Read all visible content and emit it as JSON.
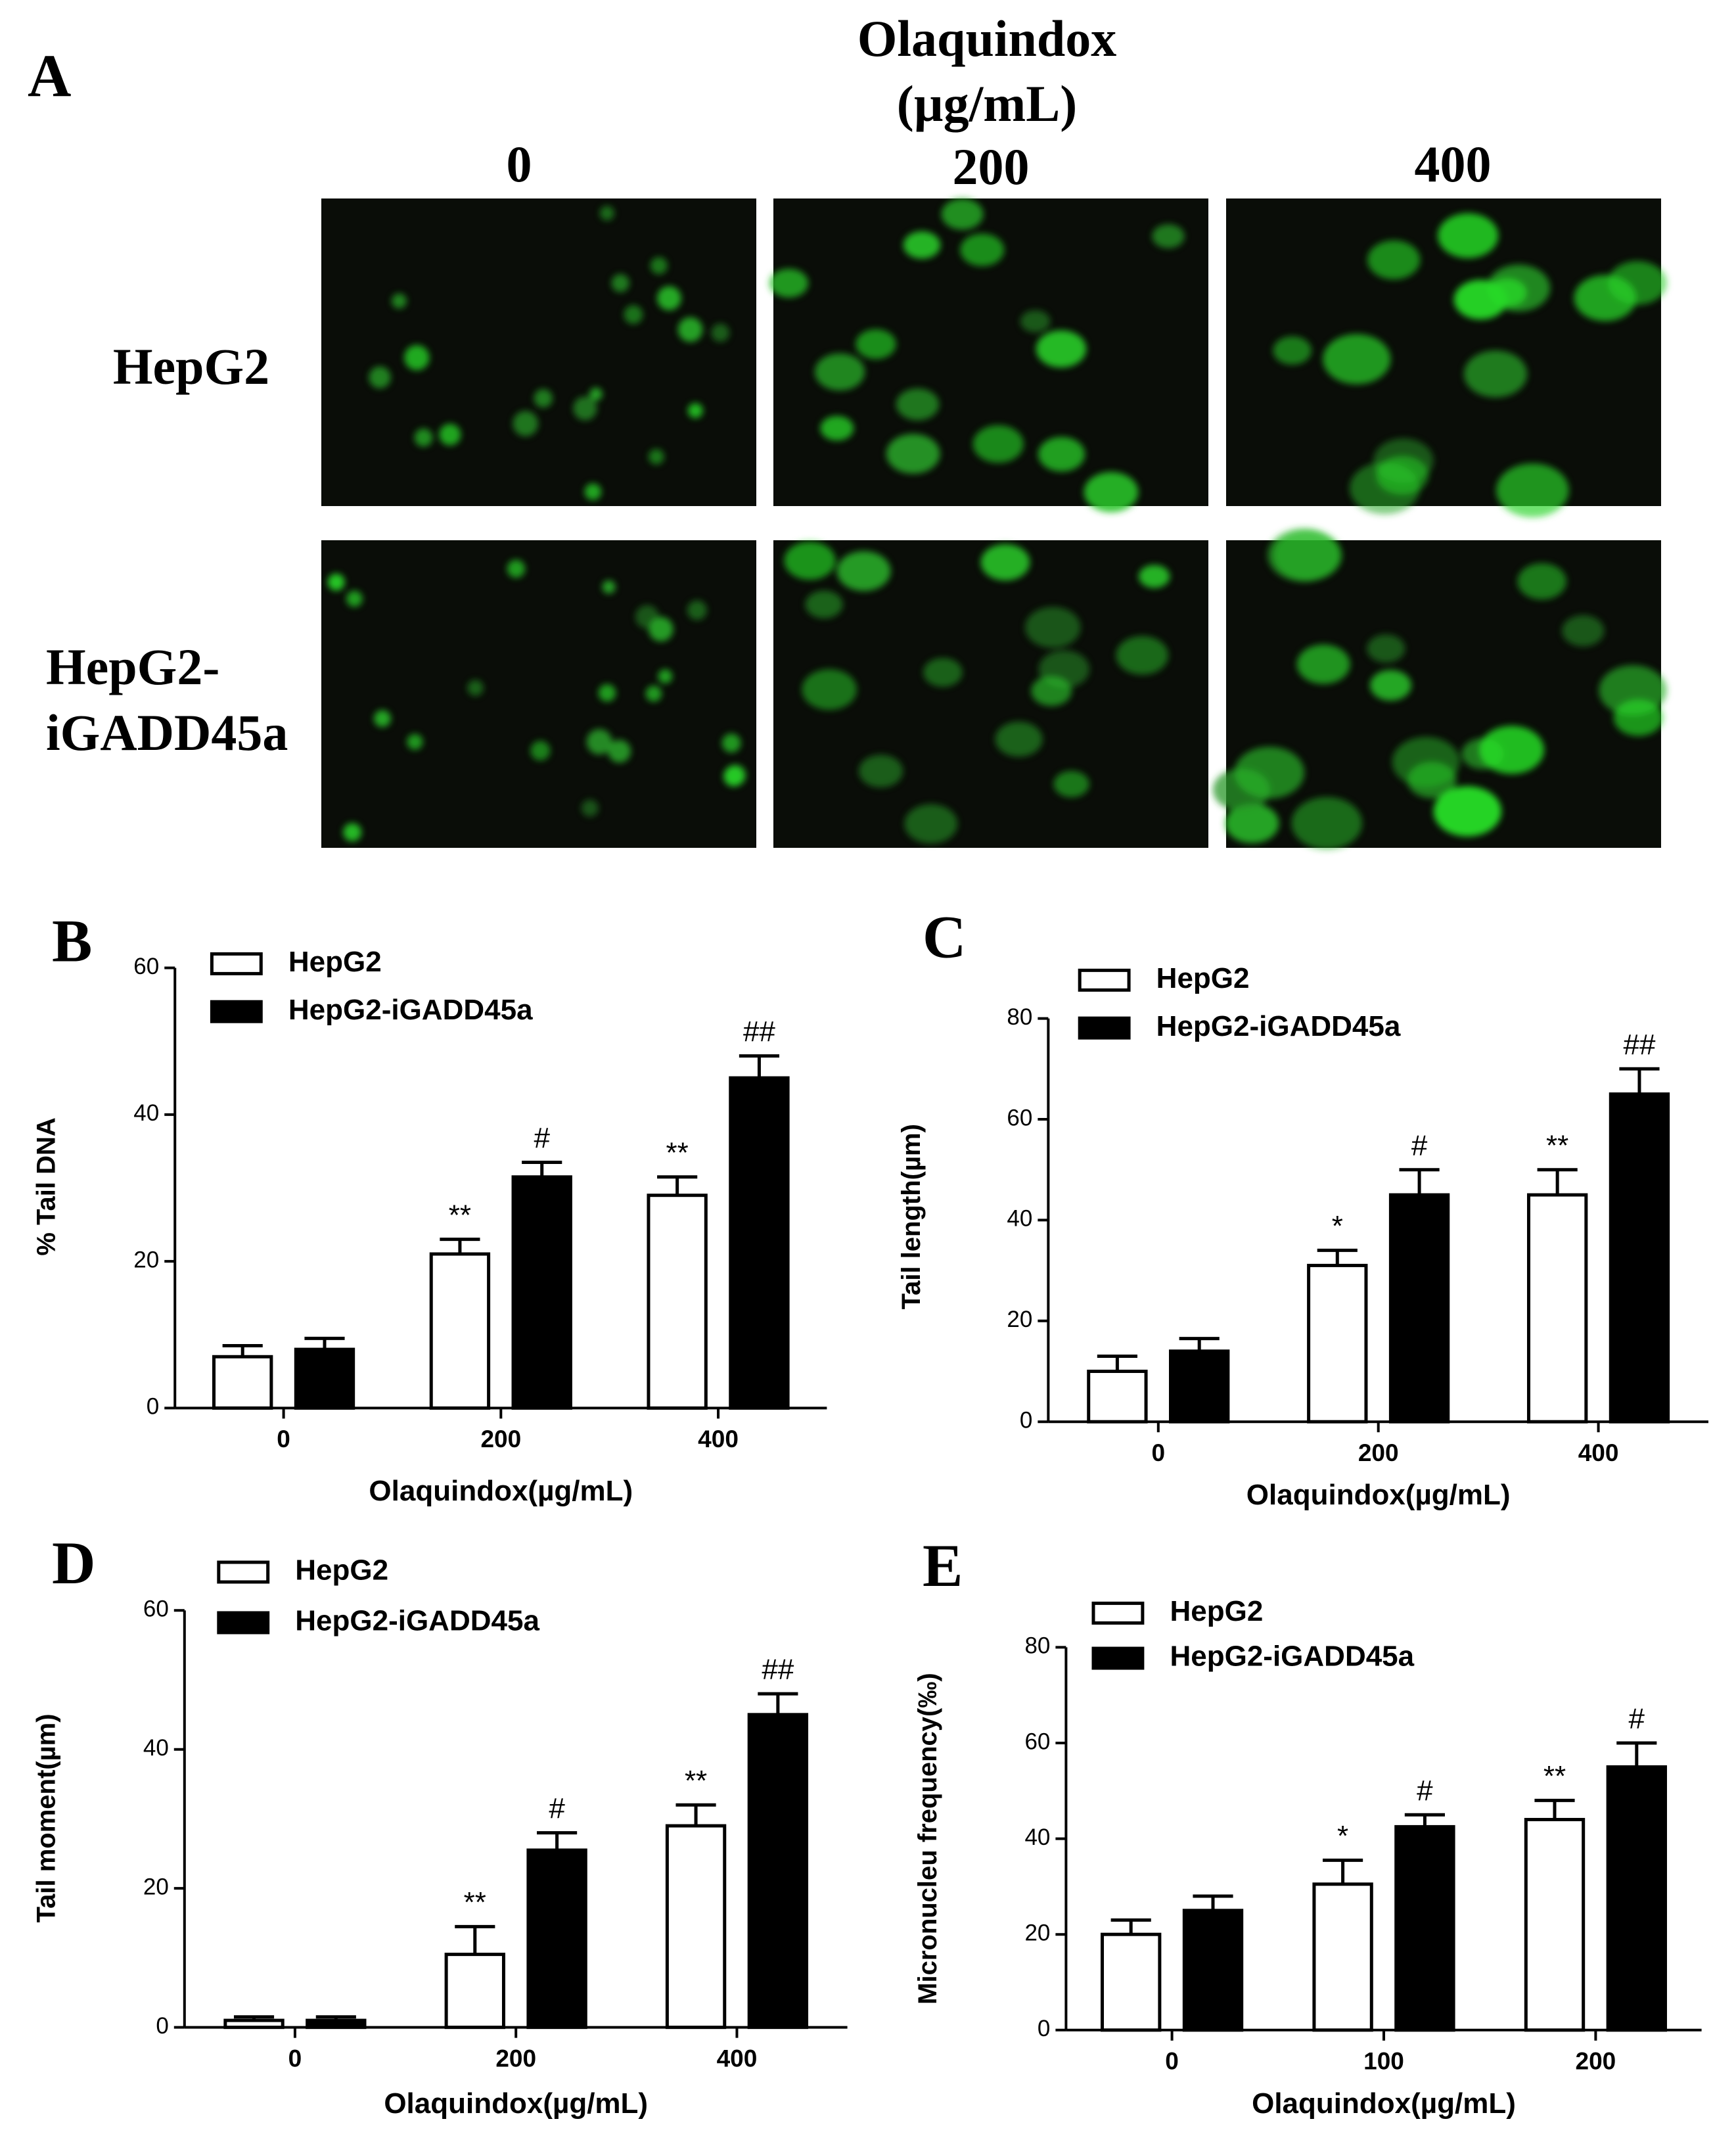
{
  "panel_a": {
    "label": "A",
    "title": "Olaquindox",
    "unit": "(µg/mL)",
    "columns": [
      "0",
      "200",
      "400"
    ],
    "rows": [
      [
        "HepG2"
      ],
      [
        "HepG2-",
        "iGADD45a"
      ]
    ]
  },
  "chart_data": [
    {
      "type": "bar",
      "panel": "B",
      "y_label": "% Tail DNA",
      "x_label": "Olaquindox(µg/mL)",
      "categories": [
        "0",
        "200",
        "400"
      ],
      "ylim": [
        0,
        60
      ],
      "yticks": [
        0,
        20,
        40,
        60
      ],
      "series": [
        {
          "name": "HepG2",
          "color": "#ffffff",
          "values": [
            7,
            21,
            29
          ],
          "errors": [
            1.5,
            2,
            2.5
          ],
          "annotations": [
            null,
            "**",
            "**"
          ]
        },
        {
          "name": "HepG2-iGADD45a",
          "color": "#000000",
          "values": [
            8,
            31.5,
            45
          ],
          "errors": [
            1.5,
            2,
            3
          ],
          "annotations": [
            null,
            "#",
            "##"
          ]
        }
      ]
    },
    {
      "type": "bar",
      "panel": "C",
      "y_label": "Tail length(µm)",
      "x_label": "Olaquindox(µg/mL)",
      "categories": [
        "0",
        "200",
        "400"
      ],
      "ylim": [
        0,
        80
      ],
      "yticks": [
        0,
        20,
        40,
        60,
        80
      ],
      "series": [
        {
          "name": "HepG2",
          "color": "#ffffff",
          "values": [
            10,
            31,
            45
          ],
          "errors": [
            3,
            3,
            5
          ],
          "annotations": [
            null,
            "*",
            "**"
          ]
        },
        {
          "name": "HepG2-iGADD45a",
          "color": "#000000",
          "values": [
            14,
            45,
            65
          ],
          "errors": [
            2.5,
            5,
            5
          ],
          "annotations": [
            null,
            "#",
            "##"
          ]
        }
      ]
    },
    {
      "type": "bar",
      "panel": "D",
      "y_label": "Tail moment(µm)",
      "x_label": "Olaquindox(µg/mL)",
      "categories": [
        "0",
        "200",
        "400"
      ],
      "ylim": [
        0,
        60
      ],
      "yticks": [
        0,
        20,
        40,
        60
      ],
      "series": [
        {
          "name": "HepG2",
          "color": "#ffffff",
          "values": [
            1,
            10.5,
            29
          ],
          "errors": [
            0.5,
            4,
            3
          ],
          "annotations": [
            null,
            "**",
            "**"
          ]
        },
        {
          "name": "HepG2-iGADD45a",
          "color": "#000000",
          "values": [
            1,
            25.5,
            45
          ],
          "errors": [
            0.5,
            2.5,
            3
          ],
          "annotations": [
            null,
            "#",
            "##"
          ]
        }
      ]
    },
    {
      "type": "bar",
      "panel": "E",
      "y_label": "Micronucleu frequency(‰)",
      "x_label": "Olaquindox(µg/mL)",
      "categories": [
        "0",
        "100",
        "200"
      ],
      "ylim": [
        0,
        80
      ],
      "yticks": [
        0,
        20,
        40,
        60,
        80
      ],
      "series": [
        {
          "name": "HepG2",
          "color": "#ffffff",
          "values": [
            20,
            30.5,
            44
          ],
          "errors": [
            3,
            5,
            4
          ],
          "annotations": [
            null,
            "*",
            "**"
          ]
        },
        {
          "name": "HepG2-iGADD45a",
          "color": "#000000",
          "values": [
            25,
            42.5,
            55
          ],
          "errors": [
            3,
            2.5,
            5
          ],
          "annotations": [
            null,
            "#",
            "#"
          ]
        }
      ]
    }
  ]
}
